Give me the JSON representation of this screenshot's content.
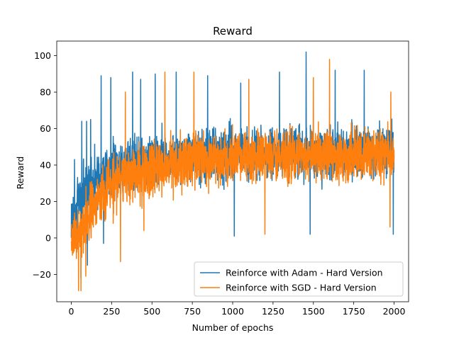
{
  "chart_data": {
    "type": "line",
    "title": "Reward",
    "xlabel": "Number of epochs",
    "ylabel": "Reward",
    "xlim": [
      -90,
      2090
    ],
    "ylim": [
      -35,
      108
    ],
    "xticks": [
      0,
      250,
      500,
      750,
      1000,
      1250,
      1500,
      1750,
      2000
    ],
    "yticks": [
      -20,
      0,
      20,
      40,
      60,
      80,
      100
    ],
    "legend_position": "lower-right",
    "num_epochs": 2000,
    "series": [
      {
        "name": "Reinforce with Adam - Hard Version",
        "color": "#1f77b4",
        "trend_x": [
          0,
          50,
          100,
          150,
          200,
          250,
          300,
          400,
          500,
          600,
          750,
          1000,
          1250,
          1500,
          1750,
          2000
        ],
        "trend_mean": [
          8,
          20,
          28,
          33,
          36,
          38,
          40,
          42,
          43,
          44,
          45,
          46,
          47,
          47,
          48,
          48
        ],
        "trend_spread": [
          20,
          24,
          24,
          23,
          22,
          22,
          22,
          21,
          21,
          21,
          21,
          21,
          21,
          21,
          21,
          21
        ],
        "peaks": [
          {
            "x": 20,
            "y": 43
          },
          {
            "x": 65,
            "y": 64
          },
          {
            "x": 95,
            "y": 64
          },
          {
            "x": 120,
            "y": 65
          },
          {
            "x": 185,
            "y": 89
          },
          {
            "x": 245,
            "y": 88
          },
          {
            "x": 380,
            "y": 91
          },
          {
            "x": 430,
            "y": 87
          },
          {
            "x": 520,
            "y": 90
          },
          {
            "x": 650,
            "y": 91
          },
          {
            "x": 845,
            "y": 89
          },
          {
            "x": 1050,
            "y": 85
          },
          {
            "x": 1290,
            "y": 91
          },
          {
            "x": 1455,
            "y": 102
          },
          {
            "x": 1635,
            "y": 92
          },
          {
            "x": 1815,
            "y": 92
          },
          {
            "x": 1995,
            "y": 66
          }
        ],
        "troughs": [
          {
            "x": 60,
            "y": -22
          },
          {
            "x": 100,
            "y": -15
          },
          {
            "x": 200,
            "y": -3
          },
          {
            "x": 1010,
            "y": 1
          },
          {
            "x": 1480,
            "y": 2
          },
          {
            "x": 1995,
            "y": 2
          }
        ]
      },
      {
        "name": "Reinforce with SGD - Hard Version",
        "color": "#ff7f0e",
        "trend_x": [
          0,
          50,
          100,
          150,
          200,
          250,
          300,
          400,
          500,
          600,
          750,
          1000,
          1250,
          1500,
          1750,
          2000
        ],
        "trend_mean": [
          -2,
          2,
          10,
          18,
          24,
          28,
          32,
          36,
          38,
          40,
          42,
          44,
          45,
          46,
          46,
          46
        ],
        "trend_spread": [
          18,
          20,
          22,
          22,
          22,
          22,
          22,
          22,
          22,
          21,
          21,
          21,
          21,
          21,
          21,
          21
        ],
        "peaks": [
          {
            "x": 335,
            "y": 80
          },
          {
            "x": 580,
            "y": 91
          },
          {
            "x": 760,
            "y": 91
          },
          {
            "x": 1100,
            "y": 87
          },
          {
            "x": 1500,
            "y": 88
          },
          {
            "x": 1600,
            "y": 98
          },
          {
            "x": 1980,
            "y": 80
          }
        ],
        "troughs": [
          {
            "x": 45,
            "y": -29
          },
          {
            "x": 60,
            "y": -29
          },
          {
            "x": 90,
            "y": -21
          },
          {
            "x": 305,
            "y": -13
          },
          {
            "x": 450,
            "y": 4
          },
          {
            "x": 1200,
            "y": 2
          },
          {
            "x": 1975,
            "y": 6
          }
        ]
      }
    ]
  }
}
